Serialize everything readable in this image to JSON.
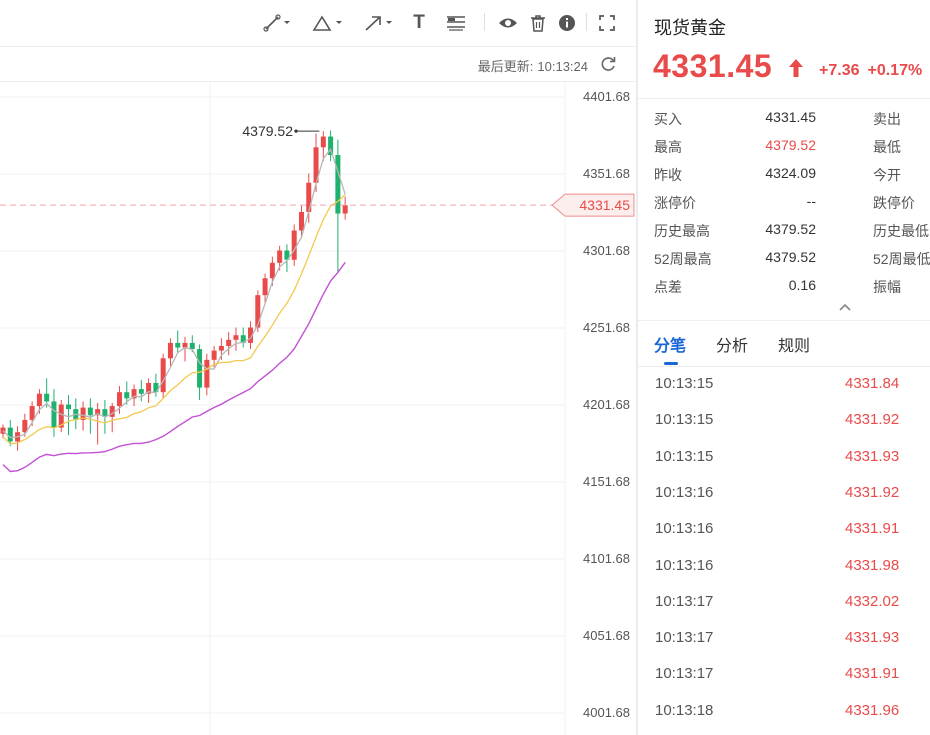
{
  "toolbar": {
    "tools": [
      {
        "name": "line-tool-icon"
      },
      {
        "name": "triangle-tool-icon"
      },
      {
        "name": "arrow-tool-icon"
      },
      {
        "name": "text-tool-icon",
        "label": "T"
      },
      {
        "name": "fib-tool-icon"
      },
      {
        "name": "eye-icon"
      },
      {
        "name": "trash-icon"
      },
      {
        "name": "info-icon"
      },
      {
        "name": "fullscreen-icon"
      }
    ],
    "update_label": "最后更新:",
    "update_time": "10:13:24"
  },
  "chart_data": {
    "type": "candlestick",
    "y_ticks": [
      "4401.68",
      "4351.68",
      "4301.68",
      "4251.68",
      "4201.68",
      "4151.68",
      "4101.68",
      "4051.68",
      "4001.68"
    ],
    "ylim": [
      4001.68,
      4401.68
    ],
    "high_annotation": "4379.52",
    "current_price_label": "4331.45",
    "current_price": 4331.45,
    "colors": {
      "up": "#e94a4a",
      "down": "#1fb16e",
      "ma_short": "#b7b7b7",
      "ma_mid": "#f2c94c",
      "ma_long": "#c34fd6",
      "price_line": "#f2a3a3"
    },
    "candles": [
      [
        4183,
        4189,
        4180,
        4187
      ],
      [
        4187,
        4192,
        4175,
        4178
      ],
      [
        4178,
        4188,
        4172,
        4184
      ],
      [
        4184,
        4196,
        4181,
        4192
      ],
      [
        4192,
        4204,
        4188,
        4201
      ],
      [
        4201,
        4212,
        4196,
        4209
      ],
      [
        4209,
        4219,
        4200,
        4204
      ],
      [
        4204,
        4212,
        4181,
        4187
      ],
      [
        4187,
        4205,
        4184,
        4202
      ],
      [
        4202,
        4208,
        4182,
        4199
      ],
      [
        4199,
        4206,
        4186,
        4192
      ],
      [
        4192,
        4204,
        4185,
        4200
      ],
      [
        4200,
        4206,
        4183,
        4195
      ],
      [
        4195,
        4203,
        4176,
        4199
      ],
      [
        4199,
        4205,
        4183,
        4194
      ],
      [
        4194,
        4203,
        4184,
        4201
      ],
      [
        4201,
        4214,
        4196,
        4210
      ],
      [
        4210,
        4217,
        4202,
        4206
      ],
      [
        4206,
        4215,
        4201,
        4212
      ],
      [
        4212,
        4218,
        4204,
        4209
      ],
      [
        4209,
        4219,
        4203,
        4216
      ],
      [
        4216,
        4222,
        4207,
        4210
      ],
      [
        4210,
        4235,
        4206,
        4232
      ],
      [
        4232,
        4245,
        4227,
        4242
      ],
      [
        4242,
        4250,
        4236,
        4239
      ],
      [
        4239,
        4246,
        4230,
        4242
      ],
      [
        4242,
        4247,
        4236,
        4238
      ],
      [
        4238,
        4241,
        4205,
        4213
      ],
      [
        4213,
        4235,
        4208,
        4231
      ],
      [
        4231,
        4240,
        4226,
        4237
      ],
      [
        4237,
        4245,
        4231,
        4240
      ],
      [
        4240,
        4249,
        4234,
        4244
      ],
      [
        4244,
        4252,
        4237,
        4247
      ],
      [
        4247,
        4252,
        4239,
        4242
      ],
      [
        4242,
        4256,
        4238,
        4252
      ],
      [
        4252,
        4276,
        4249,
        4273
      ],
      [
        4273,
        4287,
        4268,
        4284
      ],
      [
        4284,
        4298,
        4279,
        4294
      ],
      [
        4294,
        4305,
        4289,
        4302
      ],
      [
        4302,
        4306,
        4288,
        4296
      ],
      [
        4296,
        4319,
        4292,
        4315
      ],
      [
        4315,
        4331,
        4310,
        4327
      ],
      [
        4327,
        4352,
        4320,
        4346
      ],
      [
        4346,
        4378,
        4340,
        4369
      ],
      [
        4369,
        4379.52,
        4360,
        4376
      ],
      [
        4376,
        4380,
        4360,
        4364
      ],
      [
        4364,
        4374,
        4288,
        4326
      ],
      [
        4326,
        4337,
        4322,
        4331.45
      ]
    ]
  },
  "quote": {
    "title": "现货黄金",
    "price": "4331.45",
    "change": "+7.36",
    "change_pct": "+0.17%",
    "rows": [
      {
        "label": "买入",
        "value": "4331.45",
        "label2": "卖出",
        "red": false
      },
      {
        "label": "最高",
        "value": "4379.52",
        "label2": "最低",
        "red": true
      },
      {
        "label": "昨收",
        "value": "4324.09",
        "label2": "今开",
        "red": false
      },
      {
        "label": "涨停价",
        "value": "--",
        "label2": "跌停价",
        "red": false
      },
      {
        "label": "历史最高",
        "value": "4379.52",
        "label2": "历史最低",
        "red": false
      },
      {
        "label": "52周最高",
        "value": "4379.52",
        "label2": "52周最低",
        "red": false
      },
      {
        "label": "点差",
        "value": "0.16",
        "label2": "振幅",
        "red": false
      }
    ]
  },
  "tabs": [
    {
      "label": "分笔",
      "active": true
    },
    {
      "label": "分析",
      "active": false
    },
    {
      "label": "规则",
      "active": false
    }
  ],
  "ticks": [
    {
      "time": "10:13:15",
      "price": "4331.84"
    },
    {
      "time": "10:13:15",
      "price": "4331.92"
    },
    {
      "time": "10:13:15",
      "price": "4331.93"
    },
    {
      "time": "10:13:16",
      "price": "4331.92"
    },
    {
      "time": "10:13:16",
      "price": "4331.91"
    },
    {
      "time": "10:13:16",
      "price": "4331.98"
    },
    {
      "time": "10:13:17",
      "price": "4332.02"
    },
    {
      "time": "10:13:17",
      "price": "4331.93"
    },
    {
      "time": "10:13:17",
      "price": "4331.91"
    },
    {
      "time": "10:13:18",
      "price": "4331.96"
    }
  ]
}
